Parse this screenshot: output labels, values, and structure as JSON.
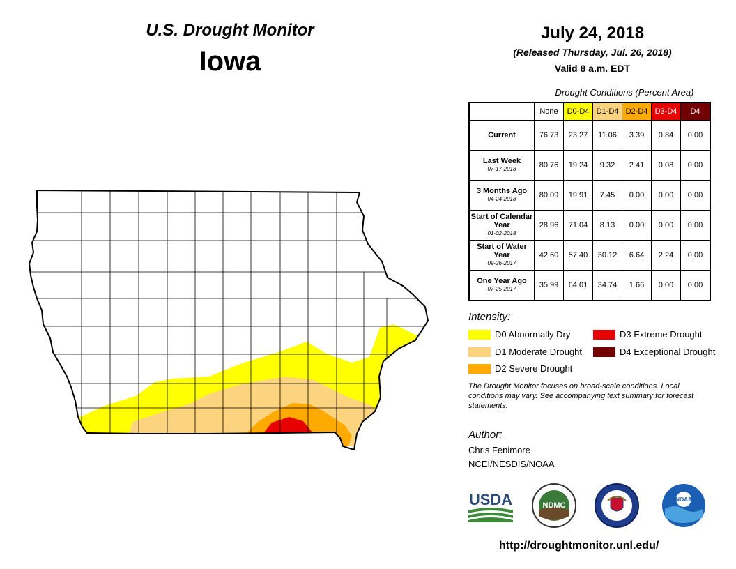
{
  "header": {
    "title": "U.S. Drought Monitor",
    "state": "Iowa",
    "date": "July 24, 2018",
    "released": "(Released Thursday, Jul. 26, 2018)",
    "valid": "Valid 8 a.m. EDT"
  },
  "table": {
    "title": "Drought Conditions (Percent Area)",
    "columns": [
      {
        "label": "None",
        "bg": "#ffffff",
        "fg": "#000000"
      },
      {
        "label": "D0-D4",
        "bg": "#ffff00",
        "fg": "#000000"
      },
      {
        "label": "D1-D4",
        "bg": "#fcd37f",
        "fg": "#000000"
      },
      {
        "label": "D2-D4",
        "bg": "#ffaa00",
        "fg": "#000000"
      },
      {
        "label": "D3-D4",
        "bg": "#e60000",
        "fg": "#ffffff"
      },
      {
        "label": "D4",
        "bg": "#730000",
        "fg": "#ffffff"
      }
    ],
    "rows": [
      {
        "label": "Current",
        "sub": "",
        "values": [
          "76.73",
          "23.27",
          "11.06",
          "3.39",
          "0.84",
          "0.00"
        ]
      },
      {
        "label": "Last Week",
        "sub": "07-17-2018",
        "values": [
          "80.76",
          "19.24",
          "9.32",
          "2.41",
          "0.08",
          "0.00"
        ]
      },
      {
        "label": "3 Months Ago",
        "sub": "04-24-2018",
        "values": [
          "80.09",
          "19.91",
          "7.45",
          "0.00",
          "0.00",
          "0.00"
        ]
      },
      {
        "label": "Start of Calendar Year",
        "sub": "01-02-2018",
        "values": [
          "28.96",
          "71.04",
          "8.13",
          "0.00",
          "0.00",
          "0.00"
        ]
      },
      {
        "label": "Start of Water Year",
        "sub": "09-26-2017",
        "values": [
          "42.60",
          "57.40",
          "30.12",
          "6.64",
          "2.24",
          "0.00"
        ]
      },
      {
        "label": "One Year Ago",
        "sub": "07-25-2017",
        "values": [
          "35.99",
          "64.01",
          "34.74",
          "1.66",
          "0.00",
          "0.00"
        ]
      }
    ]
  },
  "legend": {
    "title": "Intensity:",
    "items": [
      {
        "label": "D0 Abnormally Dry",
        "color": "#ffff00"
      },
      {
        "label": "D1 Moderate Drought",
        "color": "#fcd37f"
      },
      {
        "label": "D2 Severe Drought",
        "color": "#ffaa00"
      },
      {
        "label": "D3 Extreme Drought",
        "color": "#e60000"
      },
      {
        "label": "D4 Exceptional Drought",
        "color": "#730000"
      }
    ]
  },
  "note": "The Drought Monitor focuses on broad-scale conditions. Local conditions may vary. See accompanying text summary for forecast statements.",
  "author": {
    "title": "Author:",
    "name": "Chris Fenimore",
    "org": "NCEI/NESDIS/NOAA"
  },
  "logos": {
    "usda": "USDA",
    "ndmc": "NDMC",
    "noaa": "NOAA"
  },
  "url": "http://droughtmonitor.unl.edu/"
}
